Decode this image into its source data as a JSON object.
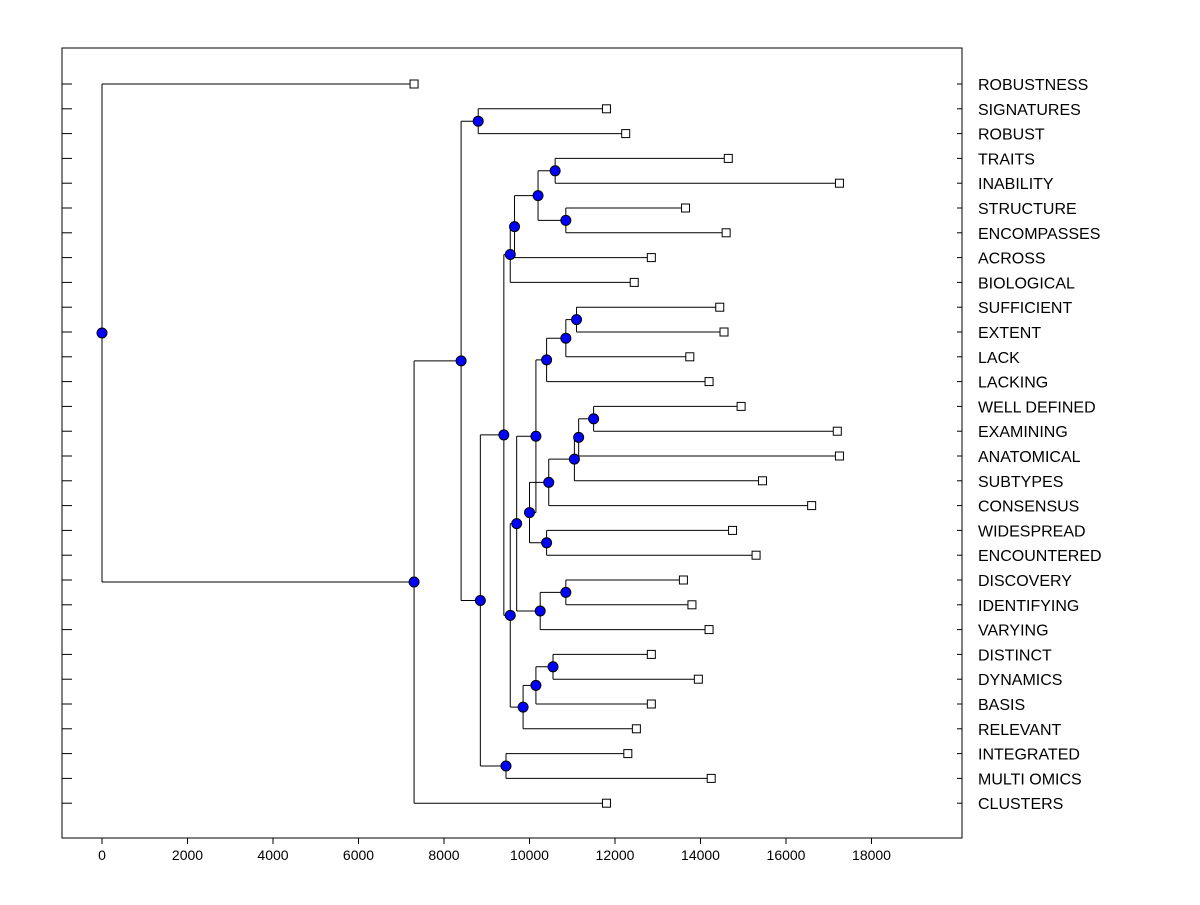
{
  "chart_data": {
    "type": "dendrogram",
    "title": "",
    "xlabel": "",
    "ylabel": "",
    "xlim": [
      -800,
      18100
    ],
    "x_ticks": [
      0,
      2000,
      4000,
      6000,
      8000,
      10000,
      12000,
      14000,
      16000,
      18000
    ],
    "x_tick_labels": [
      "0",
      "2000",
      "4000",
      "6000",
      "8000",
      "10000",
      "12000",
      "14000",
      "16000",
      "18000"
    ],
    "grid": false,
    "leaves": [
      {
        "label": "ROBUSTNESS",
        "value": 7300
      },
      {
        "label": "SIGNATURES",
        "value": 11800
      },
      {
        "label": "ROBUST",
        "value": 12250
      },
      {
        "label": "TRAITS",
        "value": 14650
      },
      {
        "label": "INABILITY",
        "value": 17250
      },
      {
        "label": "STRUCTURE",
        "value": 13650
      },
      {
        "label": "ENCOMPASSES",
        "value": 14600
      },
      {
        "label": "ACROSS",
        "value": 12850
      },
      {
        "label": "BIOLOGICAL",
        "value": 12450
      },
      {
        "label": "SUFFICIENT",
        "value": 14450
      },
      {
        "label": "EXTENT",
        "value": 14550
      },
      {
        "label": "LACK",
        "value": 13750
      },
      {
        "label": "LACKING",
        "value": 14200
      },
      {
        "label": "WELL DEFINED",
        "value": 14950
      },
      {
        "label": "EXAMINING",
        "value": 17200
      },
      {
        "label": "ANATOMICAL",
        "value": 17250
      },
      {
        "label": "SUBTYPES",
        "value": 15450
      },
      {
        "label": "CONSENSUS",
        "value": 16600
      },
      {
        "label": "WIDESPREAD",
        "value": 14750
      },
      {
        "label": "ENCOUNTERED",
        "value": 15300
      },
      {
        "label": "DISCOVERY",
        "value": 13600
      },
      {
        "label": "IDENTIFYING",
        "value": 13800
      },
      {
        "label": "VARYING",
        "value": 14200
      },
      {
        "label": "DISTINCT",
        "value": 12850
      },
      {
        "label": "DYNAMICS",
        "value": 13950
      },
      {
        "label": "BASIS",
        "value": 12850
      },
      {
        "label": "RELEVANT",
        "value": 12500
      },
      {
        "label": "INTEGRATED",
        "value": 12300
      },
      {
        "label": "MULTI OMICS",
        "value": 14250
      },
      {
        "label": "CLUSTERS",
        "value": 11800
      }
    ],
    "merges": [
      {
        "id": "n1",
        "value": 8800,
        "children": [
          "L1",
          "L2"
        ]
      },
      {
        "id": "n2",
        "value": 10600,
        "children": [
          "L3",
          "L4"
        ]
      },
      {
        "id": "n3",
        "value": 10850,
        "children": [
          "L5",
          "L6"
        ]
      },
      {
        "id": "n4",
        "value": 10200,
        "children": [
          "n2",
          "n3"
        ]
      },
      {
        "id": "n5",
        "value": 9650,
        "children": [
          "n4",
          "L7"
        ]
      },
      {
        "id": "n6",
        "value": 9550,
        "children": [
          "n5",
          "L8"
        ]
      },
      {
        "id": "n7",
        "value": 11100,
        "children": [
          "L9",
          "L10"
        ]
      },
      {
        "id": "n8",
        "value": 10850,
        "children": [
          "n7",
          "L11"
        ]
      },
      {
        "id": "n9",
        "value": 10400,
        "children": [
          "n8",
          "L12"
        ]
      },
      {
        "id": "n10",
        "value": 11500,
        "children": [
          "L13",
          "L14"
        ]
      },
      {
        "id": "n11",
        "value": 11150,
        "children": [
          "n10",
          "L15"
        ]
      },
      {
        "id": "n12",
        "value": 11050,
        "children": [
          "n11",
          "L16"
        ]
      },
      {
        "id": "n13",
        "value": 10450,
        "children": [
          "n12",
          "L17"
        ]
      },
      {
        "id": "n14",
        "value": 10400,
        "children": [
          "L18",
          "L19"
        ]
      },
      {
        "id": "n15",
        "value": 10000,
        "children": [
          "n13",
          "n14"
        ]
      },
      {
        "id": "n16",
        "value": 10150,
        "children": [
          "n9",
          "n15"
        ]
      },
      {
        "id": "n17",
        "value": 10850,
        "children": [
          "L20",
          "L21"
        ]
      },
      {
        "id": "n18",
        "value": 10250,
        "children": [
          "n17",
          "L22"
        ]
      },
      {
        "id": "n19",
        "value": 9700,
        "children": [
          "n16",
          "n18"
        ]
      },
      {
        "id": "n20",
        "value": 10550,
        "children": [
          "L23",
          "L24"
        ]
      },
      {
        "id": "n21",
        "value": 10150,
        "children": [
          "n20",
          "L25"
        ]
      },
      {
        "id": "n22",
        "value": 9850,
        "children": [
          "n21",
          "L26"
        ]
      },
      {
        "id": "n23",
        "value": 9550,
        "children": [
          "n19",
          "n22"
        ]
      },
      {
        "id": "n24",
        "value": 9400,
        "children": [
          "n6",
          "n23"
        ]
      },
      {
        "id": "n25",
        "value": 9450,
        "children": [
          "L27",
          "L28"
        ]
      },
      {
        "id": "n26",
        "value": 8850,
        "children": [
          "n24",
          "n25"
        ]
      },
      {
        "id": "n27",
        "value": 8400,
        "children": [
          "n1",
          "n26"
        ]
      },
      {
        "id": "n28",
        "value": 7300,
        "children": [
          "n27",
          "L29"
        ]
      },
      {
        "id": "n29",
        "value": 0,
        "children": [
          "L0",
          "n28"
        ]
      }
    ],
    "colors": {
      "line": "#000000",
      "merge_marker": "#0000ff",
      "leaf_marker_fill": "#ffffff"
    }
  }
}
